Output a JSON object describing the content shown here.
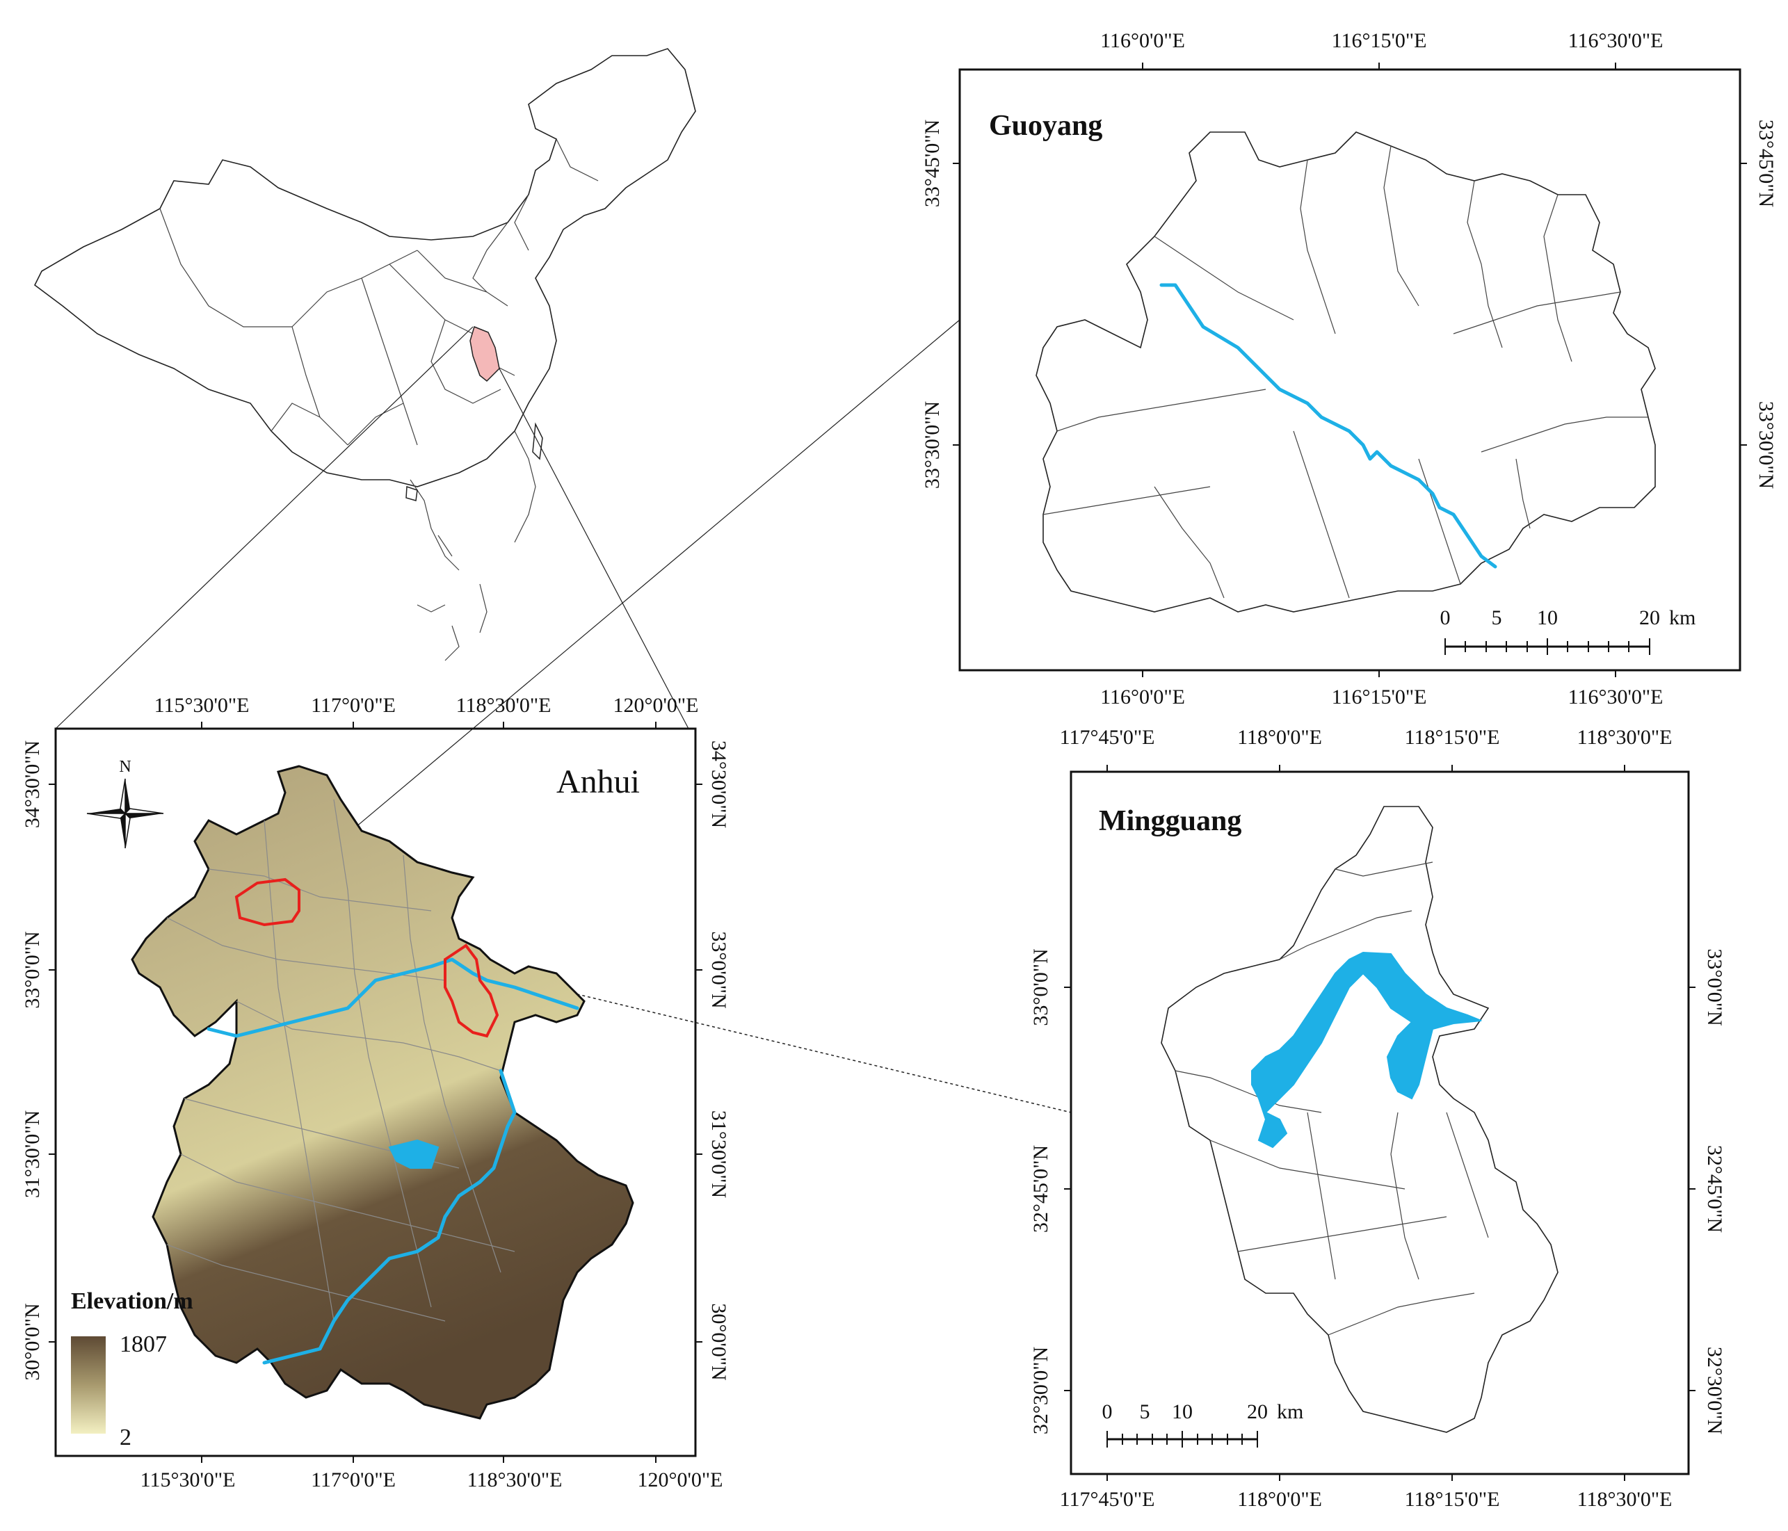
{
  "panels": {
    "anhui": {
      "title": "Anhui",
      "x_labels_top": [
        "115°30'0\"E",
        "117°0'0\"E",
        "118°30'0\"E",
        "120°0'0\"E"
      ],
      "x_labels_bottom": [
        "115°30'0\"E",
        "117°0'0\"E",
        "118°30'0\"E",
        "120°0'0\"E"
      ],
      "y_labels_left": [
        "34°30'0\"N",
        "33°0'0\"N",
        "31°30'0\"N",
        "30°0'0\"N"
      ],
      "y_labels_right": [
        "34°30'0\"N",
        "33°0'0\"N",
        "31°30'0\"N",
        "30°0'0\"N"
      ],
      "north_arrow": "N",
      "legend": {
        "title": "Elevation/m",
        "max": "1807",
        "min": "2"
      }
    },
    "guoyang": {
      "title": "Guoyang",
      "x_labels_top": [
        "116°0'0\"E",
        "116°15'0\"E",
        "116°30'0\"E"
      ],
      "x_labels_bottom": [
        "116°0'0\"E",
        "116°15'0\"E",
        "116°30'0\"E"
      ],
      "y_labels_left": [
        "33°45'0\"N",
        "33°30'0\"N"
      ],
      "y_labels_right": [
        "33°45'0\"N",
        "33°30'0\"N"
      ],
      "scale_bar": {
        "labels": [
          "0",
          "5",
          "10",
          "20"
        ],
        "unit": "km"
      }
    },
    "mingguang": {
      "title": "Mingguang",
      "x_labels_top": [
        "117°45'0\"E",
        "118°0'0\"E",
        "118°15'0\"E",
        "118°30'0\"E"
      ],
      "x_labels_bottom": [
        "117°45'0\"E",
        "118°0'0\"E",
        "118°15'0\"E",
        "118°30'0\"E"
      ],
      "y_labels_left": [
        "33°0'0\"N",
        "32°45'0\"N",
        "32°30'0\"N"
      ],
      "y_labels_right": [
        "33°0'0\"N",
        "32°45'0\"N",
        "32°30'0\"N"
      ],
      "scale_bar": {
        "labels": [
          "0",
          "5",
          "10",
          "20"
        ],
        "unit": "km"
      }
    }
  },
  "colors": {
    "river": "#1eb0e6",
    "highlight_county": "#e8201c",
    "anhui_highlight_on_china": "#f4b8b8",
    "elevation_high": "#5e4a34",
    "elevation_low": "#f3f0c2"
  }
}
